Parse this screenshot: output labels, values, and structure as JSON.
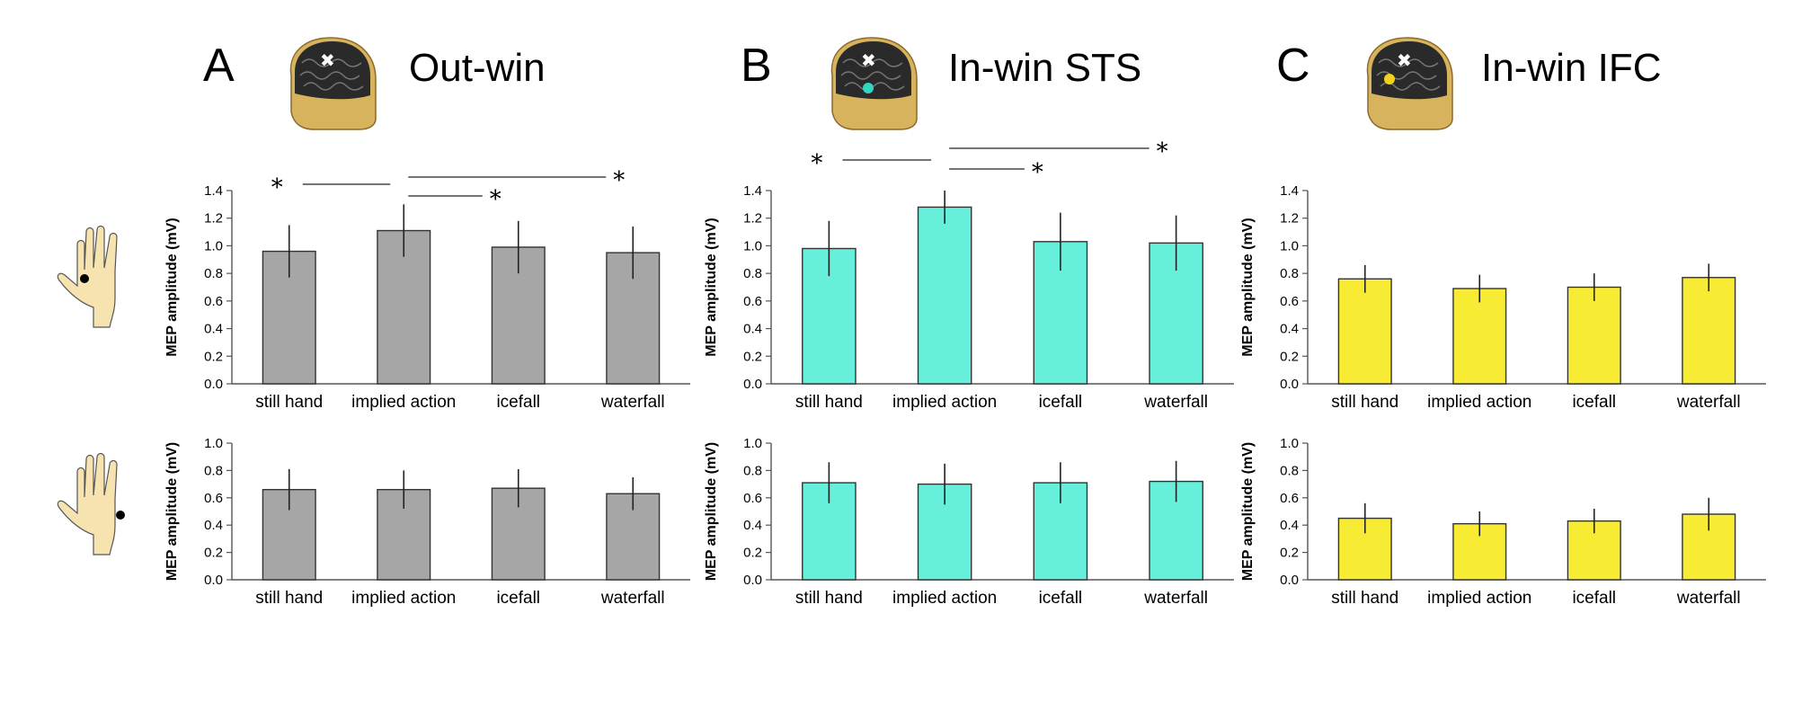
{
  "figure": {
    "panels": [
      {
        "letter": "A",
        "title": "Out-win",
        "color": "#a6a6a6",
        "dot_color": ""
      },
      {
        "letter": "B",
        "title": "In-win STS",
        "color": "#66f0dc",
        "dot_color": "#33d6c0"
      },
      {
        "letter": "C",
        "title": "In-win IFC",
        "color": "#f7ec33",
        "dot_color": "#f2d21b"
      }
    ],
    "ylabel": "MEP amplitude (mV)",
    "colors": {
      "bar_edge": "#333333",
      "axis": "#555555",
      "skin": "#f6e3b0",
      "brain": "#2a2a2a",
      "head": "#d7b35e"
    }
  },
  "chart_data": [
    {
      "type": "bar",
      "panel": "A",
      "row": 1,
      "categories": [
        "still hand",
        "implied action",
        "icefall",
        "waterfall"
      ],
      "values": [
        0.96,
        1.11,
        0.99,
        0.95
      ],
      "errors": [
        0.19,
        0.19,
        0.19,
        0.19
      ],
      "ylim": [
        0,
        1.4
      ],
      "yticks": [
        "0.0",
        "0.2",
        "0.4",
        "0.6",
        "0.8",
        "1.0",
        "1.2",
        "1.4"
      ],
      "significance": [
        {
          "label": "*",
          "from": 0,
          "to": 1
        },
        {
          "label": "*",
          "from": 1,
          "to": 3
        },
        {
          "label": "*",
          "from": 1,
          "to": 2
        }
      ]
    },
    {
      "type": "bar",
      "panel": "B",
      "row": 1,
      "categories": [
        "still hand",
        "implied action",
        "icefall",
        "waterfall"
      ],
      "values": [
        0.98,
        1.28,
        1.03,
        1.02
      ],
      "errors": [
        0.2,
        0.12,
        0.21,
        0.2
      ],
      "ylim": [
        0,
        1.4
      ],
      "yticks": [
        "0.0",
        "0.2",
        "0.4",
        "0.6",
        "0.8",
        "1.0",
        "1.2",
        "1.4"
      ],
      "significance": [
        {
          "label": "*",
          "from": 0,
          "to": 1
        },
        {
          "label": "*",
          "from": 1,
          "to": 3
        },
        {
          "label": "*",
          "from": 1,
          "to": 2
        }
      ]
    },
    {
      "type": "bar",
      "panel": "C",
      "row": 1,
      "categories": [
        "still hand",
        "implied action",
        "icefall",
        "waterfall"
      ],
      "values": [
        0.76,
        0.69,
        0.7,
        0.77
      ],
      "errors": [
        0.1,
        0.1,
        0.1,
        0.1
      ],
      "ylim": [
        0,
        1.4
      ],
      "yticks": [
        "0.0",
        "0.2",
        "0.4",
        "0.6",
        "0.8",
        "1.0",
        "1.2",
        "1.4"
      ],
      "significance": []
    },
    {
      "type": "bar",
      "panel": "A",
      "row": 2,
      "categories": [
        "still hand",
        "implied action",
        "icefall",
        "waterfall"
      ],
      "values": [
        0.66,
        0.66,
        0.67,
        0.63
      ],
      "errors": [
        0.15,
        0.14,
        0.14,
        0.12
      ],
      "ylim": [
        0,
        1.0
      ],
      "yticks": [
        "0.0",
        "0.2",
        "0.4",
        "0.6",
        "0.8",
        "1.0"
      ],
      "significance": []
    },
    {
      "type": "bar",
      "panel": "B",
      "row": 2,
      "categories": [
        "still hand",
        "implied action",
        "icefall",
        "waterfall"
      ],
      "values": [
        0.71,
        0.7,
        0.71,
        0.72
      ],
      "errors": [
        0.15,
        0.15,
        0.15,
        0.15
      ],
      "ylim": [
        0,
        1.0
      ],
      "yticks": [
        "0.0",
        "0.2",
        "0.4",
        "0.6",
        "0.8",
        "1.0"
      ],
      "significance": []
    },
    {
      "type": "bar",
      "panel": "C",
      "row": 2,
      "categories": [
        "still hand",
        "implied action",
        "icefall",
        "waterfall"
      ],
      "values": [
        0.45,
        0.41,
        0.43,
        0.48
      ],
      "errors": [
        0.11,
        0.09,
        0.09,
        0.12
      ],
      "ylim": [
        0,
        1.0
      ],
      "yticks": [
        "0.0",
        "0.2",
        "0.4",
        "0.6",
        "0.8",
        "1.0"
      ],
      "significance": []
    }
  ]
}
